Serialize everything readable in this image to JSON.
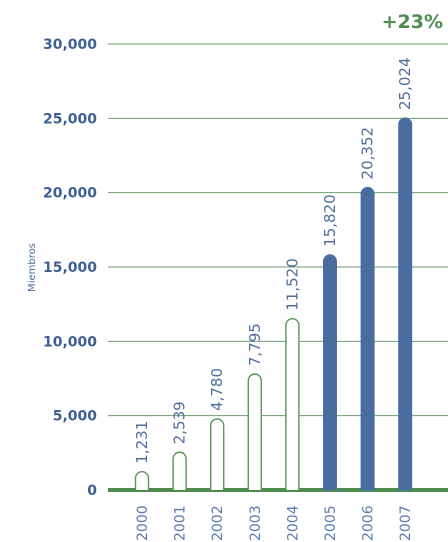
{
  "chart_data": {
    "type": "bar",
    "ylabel": "Miembros",
    "annotation": "+23%",
    "categories": [
      "2000",
      "2001",
      "2002",
      "2003",
      "2004",
      "2005",
      "2006",
      "2007"
    ],
    "values": [
      1231,
      2539,
      4780,
      7795,
      11520,
      15820,
      20352,
      25024
    ],
    "value_labels": [
      "1,231",
      "2,539",
      "4,780",
      "7,795",
      "11,520",
      "15,820",
      "20,352",
      "25,024"
    ],
    "highlighted": [
      false,
      false,
      false,
      false,
      false,
      true,
      true,
      true
    ],
    "ylim": [
      0,
      30000
    ],
    "yticks": [
      0,
      5000,
      10000,
      15000,
      20000,
      25000,
      30000
    ],
    "ytick_labels": [
      "0",
      "5,000",
      "10,000",
      "15,000",
      "20,000",
      "25,000",
      "30,000"
    ],
    "grid": true,
    "colors": {
      "grid": "#6d9e6d",
      "axis": "#4f8a4f",
      "bar_outline": "#5a955a",
      "bar_fill_highlight": "#4a6da0",
      "tick_label": "#3d5f94",
      "year_label": "#5b7bb0",
      "annotation": "#4f8a4f"
    }
  }
}
